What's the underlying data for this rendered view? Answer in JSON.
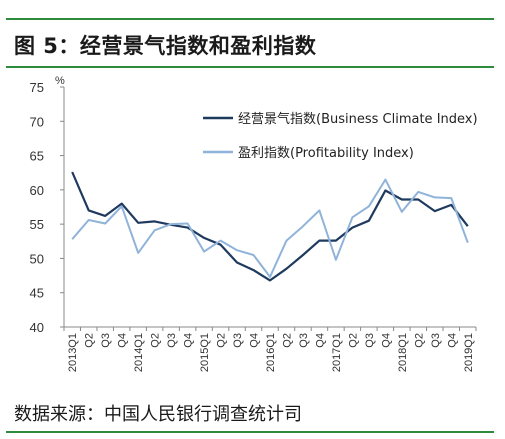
{
  "figure": {
    "title": "图 5：经营景气指数和盈利指数",
    "source": "数据来源：中国人民银行调查统计司",
    "rule_color": "#2e8b3c"
  },
  "chart_data": {
    "type": "line",
    "unit_label": "%",
    "ylim": [
      40,
      75
    ],
    "yticks": [
      40,
      45,
      50,
      55,
      60,
      65,
      70,
      75
    ],
    "grid": false,
    "legend_position": "top-right",
    "categories": [
      "2013Q1",
      "Q2",
      "Q3",
      "Q4",
      "2014Q1",
      "Q2",
      "Q3",
      "Q4",
      "2015Q1",
      "Q2",
      "Q3",
      "Q4",
      "2016Q1",
      "Q2",
      "Q3",
      "Q4",
      "2017Q1",
      "Q2",
      "Q3",
      "Q4",
      "2018Q1",
      "Q2",
      "Q3",
      "Q4",
      "2019Q1"
    ],
    "series": [
      {
        "name": "经营景气指数(Business Climate Index)",
        "color": "#1f3a5f",
        "values": [
          62.6,
          57.0,
          56.2,
          58.0,
          55.2,
          55.4,
          54.9,
          54.5,
          53.0,
          52.0,
          49.4,
          48.3,
          46.8,
          48.5,
          50.5,
          52.6,
          52.6,
          54.5,
          55.5,
          59.9,
          58.6,
          58.6,
          56.9,
          57.8,
          54.7
        ]
      },
      {
        "name": "盈利指数(Profitability Index)",
        "color": "#8fb3d9",
        "values": [
          52.8,
          55.6,
          55.1,
          57.6,
          50.8,
          54.1,
          55.0,
          55.1,
          51.0,
          52.6,
          51.2,
          50.5,
          47.3,
          52.6,
          54.7,
          57.0,
          49.8,
          56.0,
          57.6,
          61.5,
          56.8,
          59.7,
          58.9,
          58.8,
          52.3
        ]
      }
    ]
  }
}
